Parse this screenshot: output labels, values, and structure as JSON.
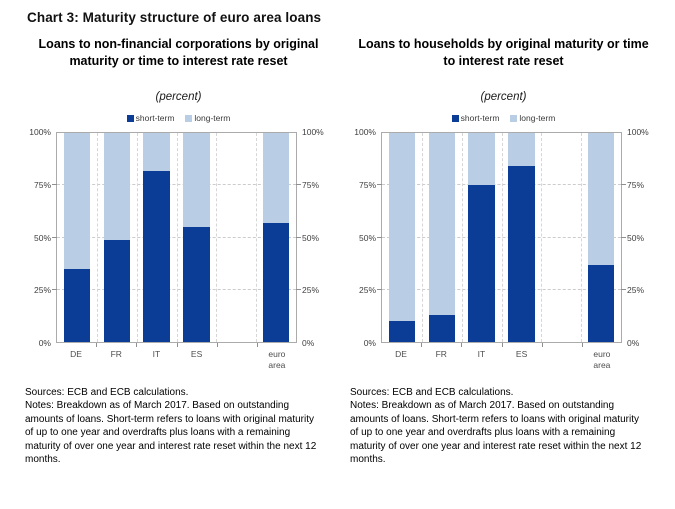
{
  "page": {
    "title": "Chart 3: Maturity structure of euro area loans"
  },
  "colors": {
    "short_term": "#0b3c96",
    "long_term": "#b9cde5",
    "grid_dashed": "#cccccc",
    "plot_frame": "#ababab",
    "axis_text": "#404040"
  },
  "chart_data": [
    {
      "type": "bar",
      "stacked": true,
      "title": "Loans to non-financial corporations by original maturity or time to interest rate reset",
      "subtitle": "(percent)",
      "legend_position": "top",
      "grid": "dashed",
      "ylim": [
        0,
        100
      ],
      "yticks": [
        "0%",
        "25%",
        "50%",
        "75%",
        "100%"
      ],
      "categories": [
        "DE",
        "FR",
        "IT",
        "ES",
        "",
        "euro area"
      ],
      "series": [
        {
          "name": "short-term",
          "color": "#0b3c96",
          "values": [
            35,
            49,
            82,
            55,
            null,
            57
          ]
        },
        {
          "name": "long-term",
          "color": "#b9cde5",
          "values": [
            65,
            51,
            18,
            45,
            null,
            43
          ]
        }
      ],
      "notes": {
        "sources": "Sources: ECB and ECB calculations.",
        "body": "Notes: Breakdown as of March 2017. Based on outstanding amounts of loans. Short-term refers to loans with original maturity of up to one year and overdrafts plus loans with a remaining maturity of over one year and interest rate reset within the next 12 months."
      }
    },
    {
      "type": "bar",
      "stacked": true,
      "title": "Loans to households by original maturity or time to interest rate reset",
      "subtitle": "(percent)",
      "legend_position": "top",
      "grid": "dashed",
      "ylim": [
        0,
        100
      ],
      "yticks": [
        "0%",
        "25%",
        "50%",
        "75%",
        "100%"
      ],
      "categories": [
        "DE",
        "FR",
        "IT",
        "ES",
        "",
        "euro area"
      ],
      "series": [
        {
          "name": "short-term",
          "color": "#0b3c96",
          "values": [
            10,
            13,
            75,
            84,
            null,
            37
          ]
        },
        {
          "name": "long-term",
          "color": "#b9cde5",
          "values": [
            90,
            87,
            25,
            16,
            null,
            63
          ]
        }
      ],
      "notes": {
        "sources": "Sources: ECB and ECB calculations.",
        "body": "Notes: Breakdown as of March 2017. Based on outstanding amounts of loans. Short-term refers to loans with original maturity of up to one year and overdrafts plus loans with a remaining maturity of over one year and interest rate reset within the next 12 months."
      }
    }
  ]
}
